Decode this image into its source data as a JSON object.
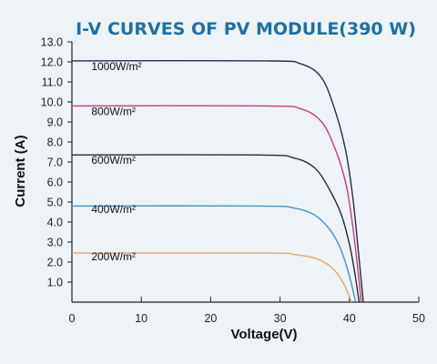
{
  "chart_data": {
    "type": "line",
    "title": "I-V CURVES OF PV MODULE(390 W)",
    "xlabel": "Voltage(V)",
    "ylabel": "Current (A)",
    "xlim": [
      0,
      50
    ],
    "ylim": [
      0,
      13
    ],
    "xticks": [
      "0",
      "10",
      "20",
      "30",
      "40",
      "50"
    ],
    "yticks": [
      "1.0",
      "2.0",
      "3.0",
      "4.0",
      "5.0",
      "6.0",
      "7.0",
      "8.0",
      "9.0",
      "10.0",
      "11.0",
      "12.0",
      "13.0"
    ],
    "grid": false,
    "series": [
      {
        "name": "1000W/m²",
        "color": "#2b2b4a",
        "x": [
          0,
          28,
          33,
          36,
          38,
          39.5,
          40.5,
          41.3,
          42
        ],
        "y": [
          12.05,
          12.05,
          11.9,
          11.2,
          9.5,
          7.5,
          5.2,
          2.5,
          0
        ]
      },
      {
        "name": "800W/m²",
        "color": "#c0407a",
        "x": [
          0,
          28,
          33,
          36,
          38,
          39.5,
          40.4,
          41.1,
          41.7
        ],
        "y": [
          9.8,
          9.8,
          9.65,
          9.0,
          7.6,
          5.9,
          4.0,
          2.0,
          0
        ]
      },
      {
        "name": "600W/m²",
        "color": "#2a2a2a",
        "x": [
          0,
          27,
          32,
          35,
          37,
          38.8,
          40,
          40.8,
          41.4
        ],
        "y": [
          7.35,
          7.35,
          7.2,
          6.7,
          5.7,
          4.4,
          2.9,
          1.4,
          0
        ]
      },
      {
        "name": "400W/m²",
        "color": "#4a8fc4",
        "x": [
          0,
          27,
          32,
          35,
          37,
          38.5,
          39.5,
          40.3,
          40.9
        ],
        "y": [
          4.8,
          4.8,
          4.7,
          4.35,
          3.7,
          2.85,
          1.9,
          0.9,
          0
        ]
      },
      {
        "name": "200W/m²",
        "color": "#e2a860",
        "x": [
          0,
          28,
          32,
          35,
          37,
          38.3,
          39.2,
          39.8,
          40.3
        ],
        "y": [
          2.45,
          2.45,
          2.38,
          2.2,
          1.85,
          1.4,
          0.9,
          0.45,
          0
        ]
      }
    ],
    "label_positions_data": [
      {
        "x": 2.8,
        "y": 11.6
      },
      {
        "x": 2.8,
        "y": 9.35
      },
      {
        "x": 2.8,
        "y": 6.9
      },
      {
        "x": 2.8,
        "y": 4.45
      },
      {
        "x": 2.8,
        "y": 2.1
      }
    ],
    "colors": {
      "title": "#1f6fa8",
      "axis": "#222222"
    }
  }
}
